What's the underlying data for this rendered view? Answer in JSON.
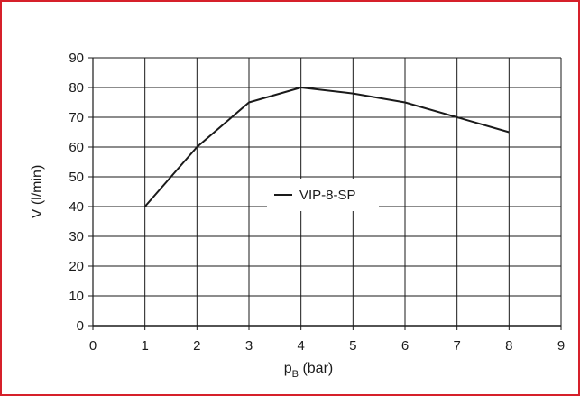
{
  "frame_color": "#d6202a",
  "chart_data": {
    "type": "line",
    "title": "",
    "xlabel": {
      "main": "p",
      "sub": "B",
      "unit": " (bar)"
    },
    "ylabel": "V (l/min)",
    "xlim": [
      0,
      9
    ],
    "ylim": [
      0,
      90
    ],
    "xticks": [
      0,
      1,
      2,
      3,
      4,
      5,
      6,
      7,
      8,
      9
    ],
    "yticks": [
      0,
      10,
      20,
      30,
      40,
      50,
      60,
      70,
      80,
      90
    ],
    "grid": true,
    "legend_position": "center",
    "series": [
      {
        "name": "VIP-8-SP",
        "color": "#1a1a1a",
        "x": [
          1,
          2,
          3,
          4,
          5,
          6,
          7,
          8
        ],
        "y": [
          40,
          60,
          75,
          80,
          78,
          75,
          70,
          65
        ]
      }
    ]
  }
}
